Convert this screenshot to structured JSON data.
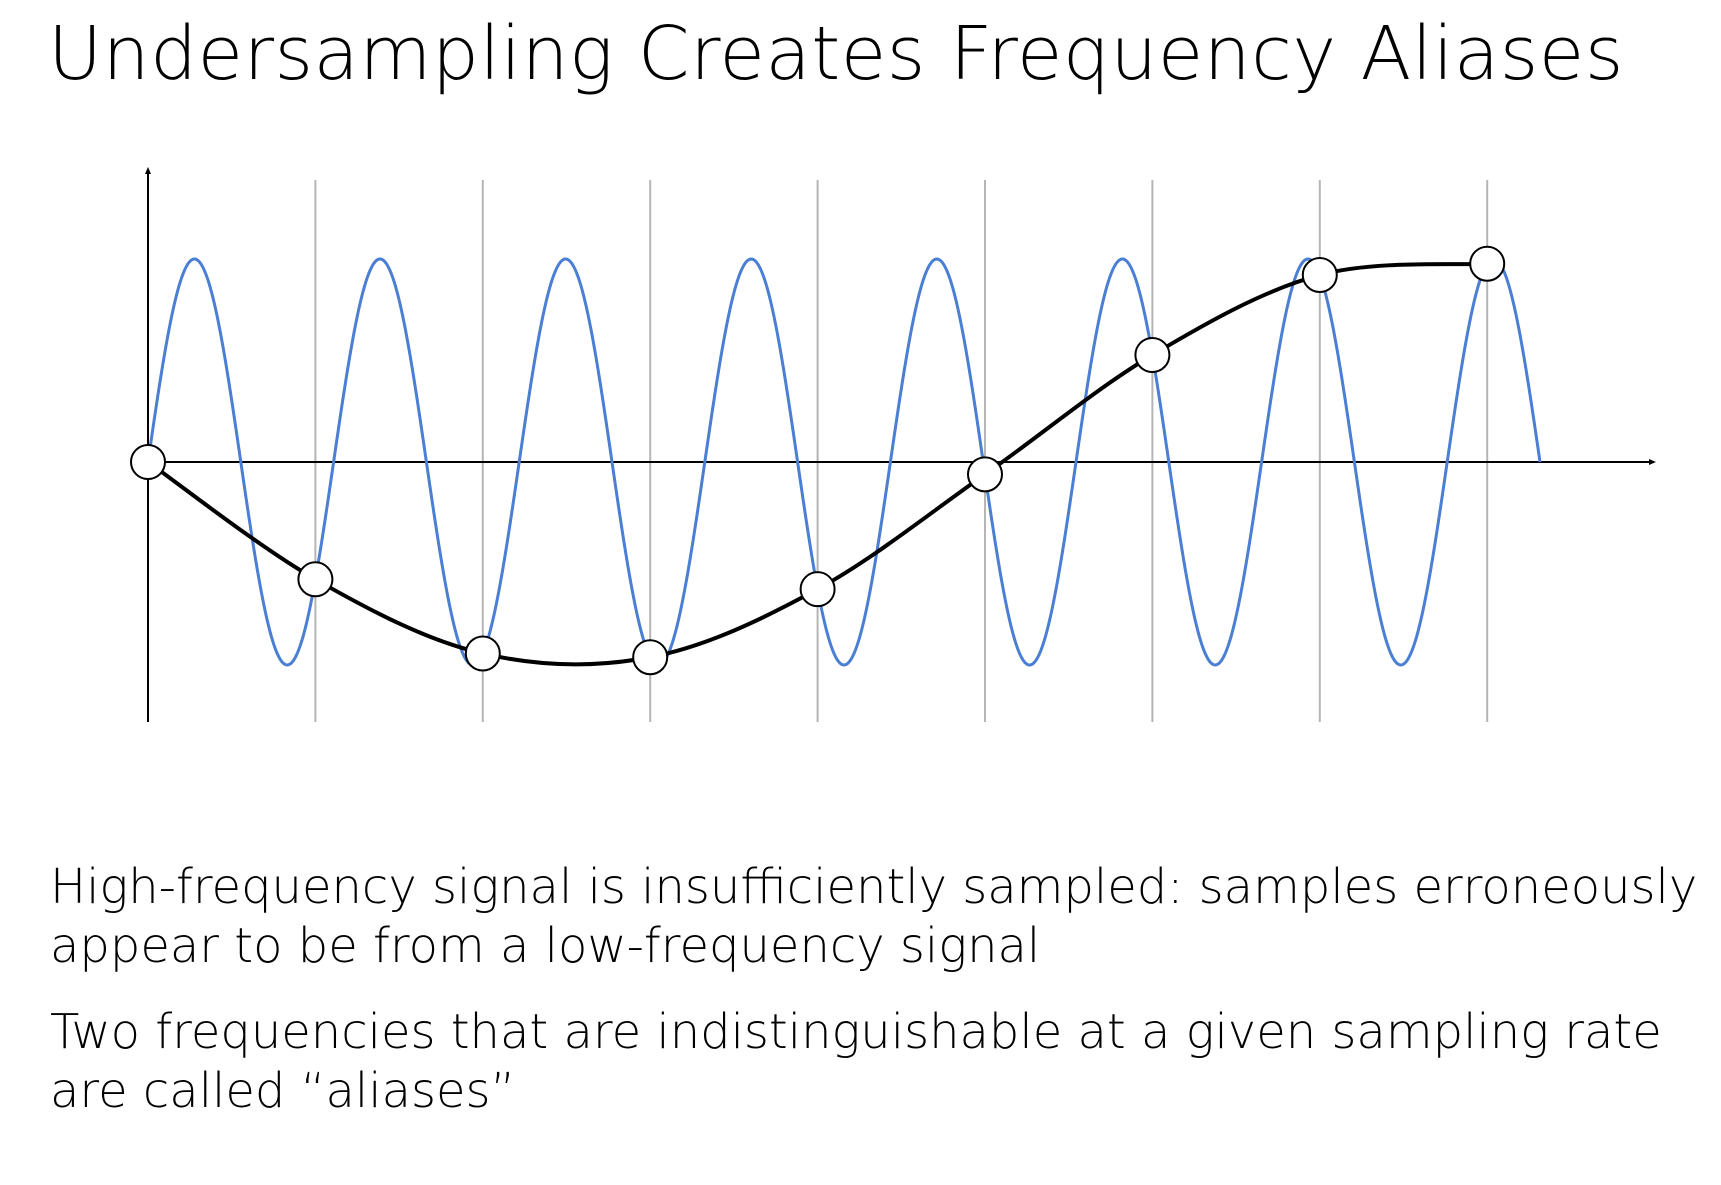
{
  "slide": {
    "title": "Undersampling Creates Frequency Aliases",
    "bullets": [
      "High-frequency signal is insufficiently sampled: samples erroneously appear to be from a low-frequency signal",
      "Two frequencies that are indistinguishable at a given sampling rate are called “aliases”"
    ]
  },
  "diagram_data": {
    "high_frequency_cycles": 7.5,
    "sample_count": 9,
    "colors": {
      "high_frequency_signal": "#4a7fd4",
      "low_frequency_alias": "#000000",
      "sample_lines": "#b5b5b5",
      "axes": "#000000",
      "sample_marker_fill": "#ffffff"
    }
  }
}
